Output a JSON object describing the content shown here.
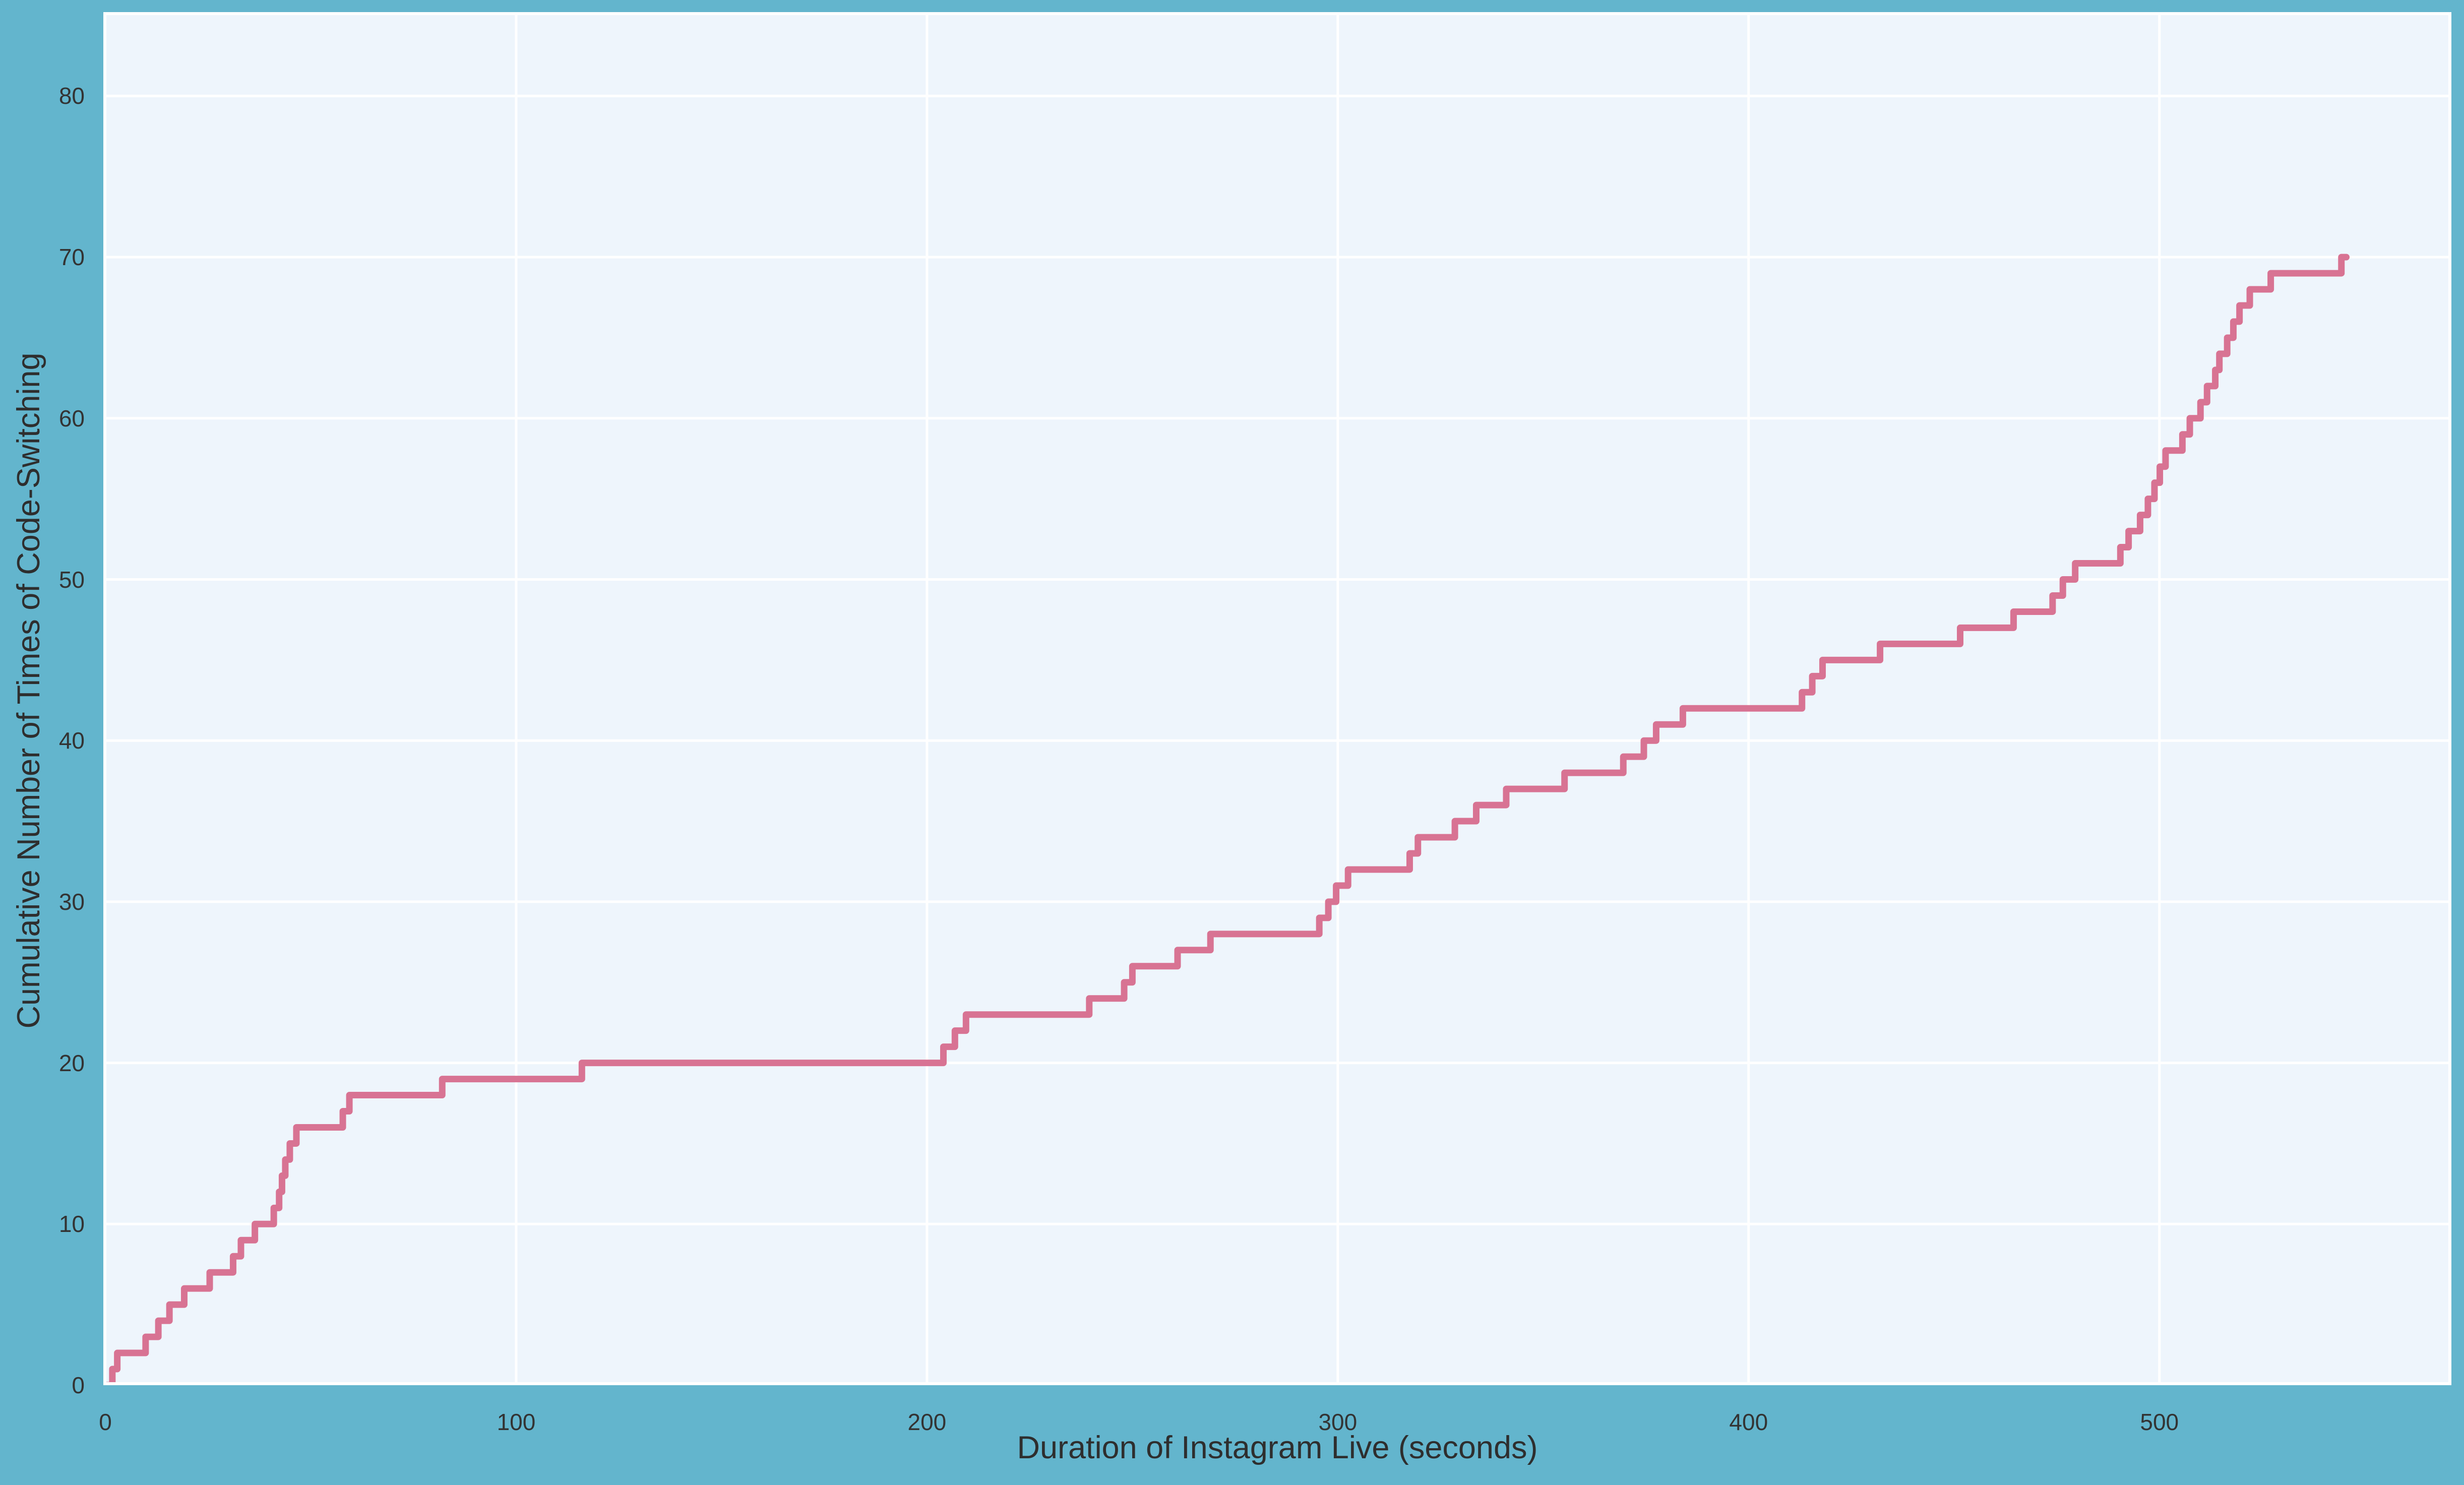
{
  "figure": {
    "background_color": "#63b5cd",
    "plot_background_color": "#eef5fc",
    "grid_color": "#ffffff",
    "spine_color": "#ffffff",
    "tick_text_color": "#333333",
    "label_text_color": "#2e2e2e"
  },
  "axes": {
    "x": {
      "label": "Duration of Instagram Live (seconds)",
      "ticks": [
        "0",
        "100",
        "200",
        "300",
        "400",
        "500"
      ],
      "tick_values": [
        0,
        100,
        200,
        300,
        400,
        500
      ]
    },
    "y": {
      "label": "Cumulative Number of Times of Code-Switching",
      "ticks": [
        "0",
        "10",
        "20",
        "30",
        "40",
        "50",
        "60",
        "70",
        "80"
      ],
      "tick_values": [
        0,
        10,
        20,
        30,
        40,
        50,
        60,
        70,
        80
      ]
    }
  },
  "chart_data": {
    "type": "line",
    "step_mode": "post",
    "title": "",
    "xlabel": "Duration of Instagram Live (seconds)",
    "ylabel": "Cumulative Number of Times of Code-Switching",
    "xlim": [
      0,
      570
    ],
    "ylim": [
      0,
      85
    ],
    "grid": true,
    "legend_position": "none",
    "line_color": "#d87393",
    "line_width": 13,
    "series": [
      {
        "name": "cumulative-code-switching",
        "start": [
          0,
          0
        ],
        "end_x": 545.5,
        "x": [
          1.7,
          2.9,
          9.8,
          12.9,
          15.6,
          19.2,
          25.4,
          31.1,
          33,
          36.4,
          41,
          42.3,
          43,
          43.8,
          44.9,
          46.5,
          57.8,
          59.4,
          82,
          116,
          204,
          206.8,
          209.5,
          239.5,
          248,
          250,
          261,
          269,
          295.5,
          297.7,
          299.6,
          302.5,
          317.5,
          319.5,
          328.5,
          333.7,
          341,
          355.2,
          369.5,
          374.5,
          377.5,
          384,
          413,
          415.5,
          418,
          432,
          451.5,
          464.5,
          474,
          476.5,
          479.5,
          490.5,
          492.5,
          495.3,
          497.2,
          498.8,
          500.1,
          501.5,
          505.6,
          507.4,
          510,
          511.6,
          513.6,
          514.6,
          516.5,
          518,
          519.5,
          522,
          527.1,
          544.3
        ],
        "y": [
          1,
          2,
          3,
          4,
          5,
          6,
          7,
          8,
          9,
          10,
          11,
          12,
          13,
          14,
          15,
          16,
          17,
          18,
          19,
          20,
          21,
          22,
          23,
          24,
          25,
          26,
          27,
          28,
          29,
          30,
          31,
          32,
          33,
          34,
          35,
          36,
          37,
          38,
          39,
          40,
          41,
          42,
          43,
          44,
          45,
          46,
          47,
          48,
          49,
          50,
          51,
          52,
          53,
          54,
          55,
          56,
          57,
          58,
          59,
          60,
          61,
          62,
          63,
          64,
          65,
          66,
          67,
          68,
          69,
          70
        ]
      }
    ]
  }
}
